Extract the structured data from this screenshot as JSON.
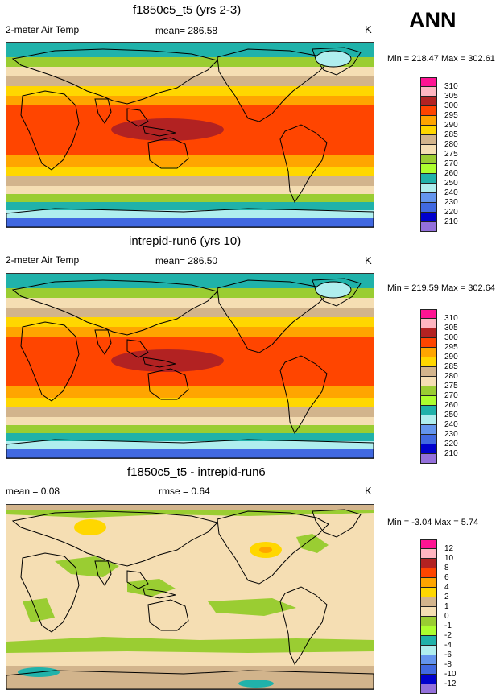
{
  "season": "ANN",
  "panels": [
    {
      "title": "f1850c5_t5 (yrs 2-3)",
      "left_label": "2-meter Air Temp",
      "center_label": "mean= 286.58",
      "units": "K",
      "minmax": "Min = 218.47 Max = 302.61",
      "levels": [
        "310",
        "305",
        "300",
        "295",
        "290",
        "285",
        "280",
        "275",
        "270",
        "260",
        "250",
        "240",
        "230",
        "220",
        "210"
      ],
      "colors": [
        "#ff1493",
        "#ffb6c1",
        "#b22222",
        "#ff4500",
        "#ffa500",
        "#ffd700",
        "#d2b48c",
        "#f5deb3",
        "#9acd32",
        "#adff2f",
        "#20b2aa",
        "#afeeee",
        "#6495ed",
        "#4169e1",
        "#0000cd",
        "#9370db"
      ],
      "kind": "temp"
    },
    {
      "title": "intrepid-run6 (yrs 10)",
      "left_label": "2-meter Air Temp",
      "center_label": "mean= 286.50",
      "units": "K",
      "minmax": "Min = 219.59 Max = 302.64",
      "levels": [
        "310",
        "305",
        "300",
        "295",
        "290",
        "285",
        "280",
        "275",
        "270",
        "260",
        "250",
        "240",
        "230",
        "220",
        "210"
      ],
      "colors": [
        "#ff1493",
        "#ffb6c1",
        "#b22222",
        "#ff4500",
        "#ffa500",
        "#ffd700",
        "#d2b48c",
        "#f5deb3",
        "#9acd32",
        "#adff2f",
        "#20b2aa",
        "#afeeee",
        "#6495ed",
        "#4169e1",
        "#0000cd",
        "#9370db"
      ],
      "kind": "temp"
    },
    {
      "title": "f1850c5_t5 - intrepid-run6",
      "left_label": "mean =  0.08",
      "center_label": "rmse =  0.64",
      "units": "K",
      "minmax": "Min =  -3.04 Max =  5.74",
      "levels": [
        "12",
        "10",
        "8",
        "6",
        "4",
        "2",
        "1",
        "0",
        "-1",
        "-2",
        "-4",
        "-6",
        "-8",
        "-10",
        "-12"
      ],
      "colors": [
        "#ff1493",
        "#ffb6c1",
        "#b22222",
        "#ff4500",
        "#ffa500",
        "#ffd700",
        "#d2b48c",
        "#f5deb3",
        "#9acd32",
        "#adff2f",
        "#20b2aa",
        "#afeeee",
        "#6495ed",
        "#4169e1",
        "#0000cd",
        "#9370db"
      ],
      "kind": "diff"
    }
  ]
}
